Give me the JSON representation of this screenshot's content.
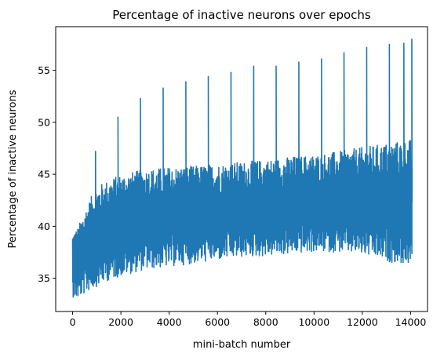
{
  "chart_data": {
    "type": "line",
    "title": "Percentage of inactive neurons over epochs",
    "xlabel": "mini-batch number",
    "ylabel": "Percentage of inactive neurons",
    "xlim": [
      -700,
      14700
    ],
    "ylim": [
      31.8,
      59.2
    ],
    "xticks": [
      0,
      2000,
      4000,
      6000,
      8000,
      10000,
      12000,
      14000
    ],
    "xtick_labels": [
      "0",
      "2000",
      "4000",
      "6000",
      "8000",
      "10000",
      "12000",
      "14000"
    ],
    "yticks": [
      35,
      40,
      45,
      50,
      55
    ],
    "ytick_labels": [
      "35",
      "40",
      "45",
      "50",
      "55"
    ],
    "grid": false,
    "series": [
      {
        "color": "#1f77b4",
        "x_range": [
          0,
          14060
        ],
        "envelope": {
          "x": [
            0,
            200,
            500,
            800,
            1000,
            1500,
            2000,
            3000,
            4000,
            5000,
            6000,
            7000,
            8000,
            9000,
            10000,
            11000,
            12000,
            13000,
            14060
          ],
          "upper": [
            39.5,
            39.8,
            41.5,
            43.0,
            43.8,
            44.5,
            45.0,
            45.5,
            45.7,
            45.8,
            46.0,
            46.2,
            46.4,
            46.7,
            46.9,
            47.2,
            47.6,
            48.0,
            48.4
          ],
          "lower": [
            33.2,
            33.0,
            33.5,
            34.0,
            34.2,
            34.8,
            35.2,
            35.8,
            36.1,
            36.4,
            36.7,
            37.0,
            37.1,
            37.3,
            37.5,
            37.5,
            37.2,
            36.6,
            36.2
          ]
        },
        "spikes": [
          {
            "x": 950,
            "y": 47.2
          },
          {
            "x": 1880,
            "y": 50.5
          },
          {
            "x": 2810,
            "y": 52.3
          },
          {
            "x": 3750,
            "y": 53.3
          },
          {
            "x": 4690,
            "y": 53.9
          },
          {
            "x": 5620,
            "y": 54.4
          },
          {
            "x": 6560,
            "y": 54.8
          },
          {
            "x": 7500,
            "y": 55.4
          },
          {
            "x": 8430,
            "y": 55.4
          },
          {
            "x": 9370,
            "y": 55.8
          },
          {
            "x": 10310,
            "y": 56.1
          },
          {
            "x": 11240,
            "y": 56.7
          },
          {
            "x": 12180,
            "y": 57.2
          },
          {
            "x": 13120,
            "y": 57.5
          },
          {
            "x": 13720,
            "y": 57.6
          },
          {
            "x": 14050,
            "y": 58.0
          }
        ]
      }
    ]
  }
}
